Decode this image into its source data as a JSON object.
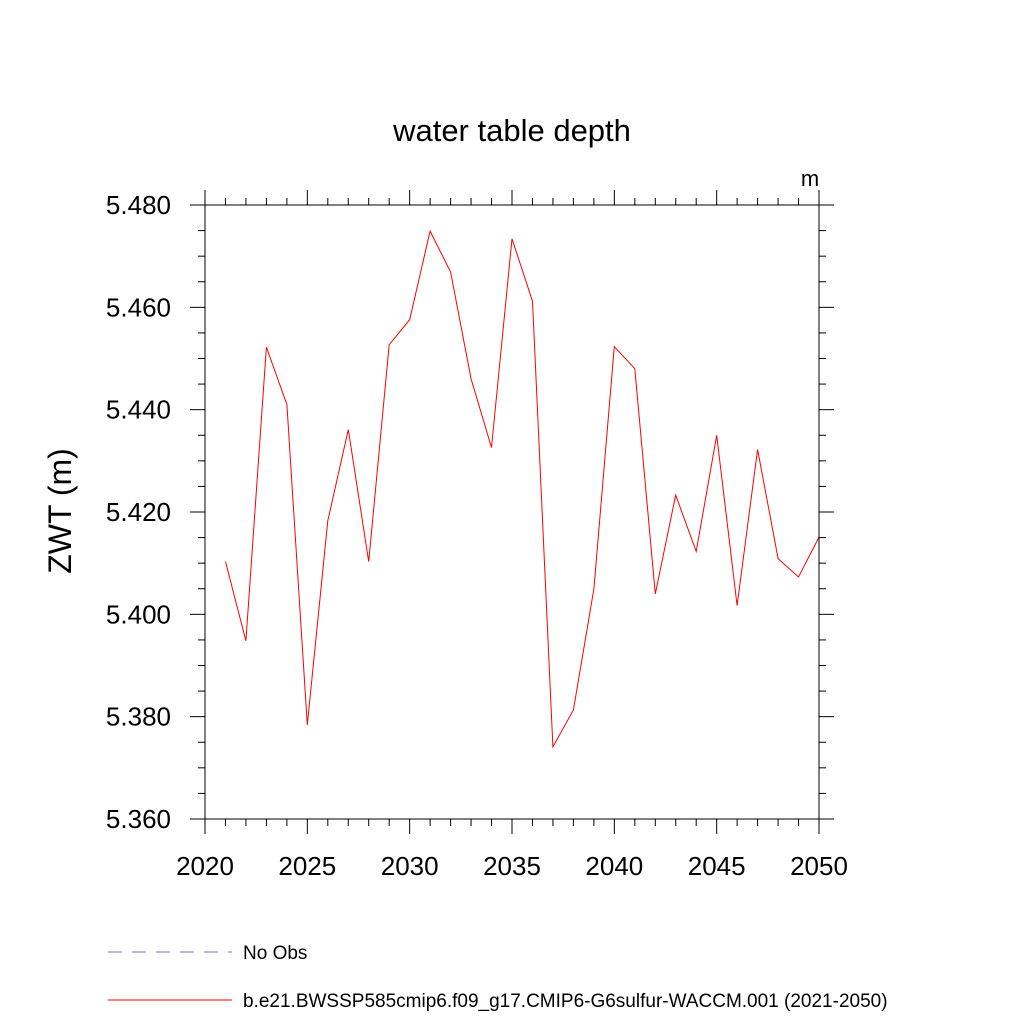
{
  "chart_data": {
    "type": "line",
    "title": "water table depth",
    "units_label": "m",
    "ylabel": "ZWT  (m)",
    "xlabel": "",
    "xlim": [
      2020,
      2050
    ],
    "ylim": [
      5.36,
      5.48
    ],
    "x_ticks": [
      2020,
      2025,
      2030,
      2035,
      2040,
      2045,
      2050
    ],
    "x_tick_labels": [
      "2020",
      "2025",
      "2030",
      "2035",
      "2040",
      "2045",
      "2050"
    ],
    "y_ticks": [
      5.36,
      5.38,
      5.4,
      5.42,
      5.44,
      5.46,
      5.48
    ],
    "y_tick_labels": [
      "5.360",
      "5.380",
      "5.400",
      "5.420",
      "5.440",
      "5.460",
      "5.480"
    ],
    "x_minor_step": 1,
    "y_minor_step": 0.005,
    "grid": false,
    "legend_position": "bottom",
    "series": [
      {
        "name": "b.e21.BWSSP585cmip6.f09_g17.CMIP6-G6sulfur-WACCM.001 (2021-2050)",
        "color": "#ff0000",
        "dash": "solid",
        "x": [
          2021,
          2022,
          2023,
          2024,
          2025,
          2026,
          2027,
          2028,
          2029,
          2030,
          2031,
          2032,
          2033,
          2034,
          2035,
          2036,
          2037,
          2038,
          2039,
          2040,
          2041,
          2042,
          2043,
          2044,
          2045,
          2046,
          2047,
          2048,
          2049,
          2050
        ],
        "values": [
          5.4103,
          5.3948,
          5.4522,
          5.441,
          5.3784,
          5.4183,
          5.4361,
          5.4103,
          5.4527,
          5.4576,
          5.4749,
          5.4669,
          5.446,
          5.4326,
          5.4734,
          5.4612,
          5.3741,
          5.3813,
          5.405,
          5.4523,
          5.448,
          5.404,
          5.4233,
          5.4123,
          5.435,
          5.4017,
          5.4322,
          5.4109,
          5.4073,
          5.4151
        ]
      }
    ],
    "legend": [
      {
        "label": "No Obs",
        "color": "#7b6fc4",
        "dash": "dashed"
      },
      {
        "label": "b.e21.BWSSP585cmip6.f09_g17.CMIP6-G6sulfur-WACCM.001 (2021-2050)",
        "color": "#ff0000",
        "dash": "solid"
      }
    ]
  }
}
